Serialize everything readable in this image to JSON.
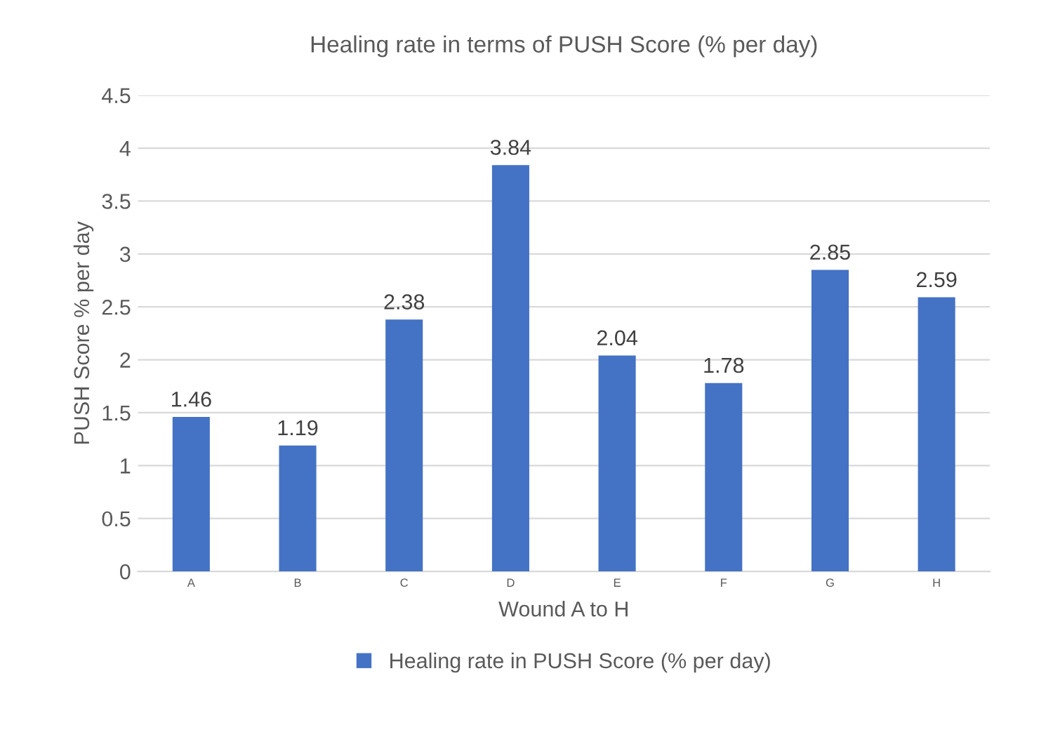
{
  "chart_data": {
    "type": "bar",
    "title": "Healing rate in terms of PUSH Score (% per day)",
    "xlabel": "Wound A to H",
    "ylabel": "PUSH Score % per day",
    "categories": [
      "A",
      "B",
      "C",
      "D",
      "E",
      "F",
      "G",
      "H"
    ],
    "series": [
      {
        "name": "Healing rate in PUSH Score (% per day)",
        "color": "#4472c4",
        "values": [
          1.46,
          1.19,
          2.38,
          3.84,
          2.04,
          1.78,
          2.85,
          2.59
        ]
      }
    ],
    "ylim": [
      0,
      4.5
    ],
    "yticks": [
      0,
      0.5,
      1,
      1.5,
      2,
      2.5,
      3,
      3.5,
      4,
      4.5
    ],
    "grid": "y",
    "legend": "bottom",
    "data_labels": true
  }
}
